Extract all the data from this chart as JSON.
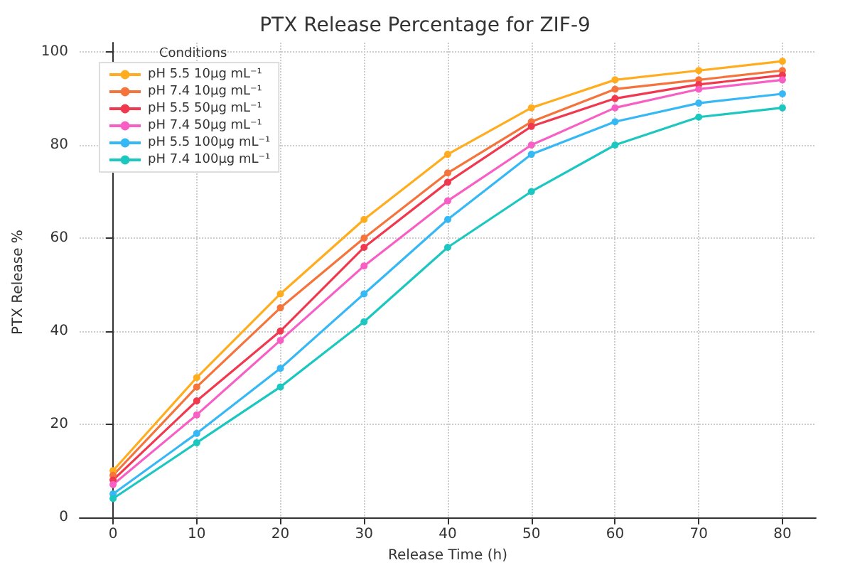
{
  "chart_data": {
    "type": "line",
    "title": "PTX Release Percentage for ZIF-9",
    "xlabel": "Release Time (h)",
    "ylabel": "PTX Release %",
    "legend_title": "Conditions",
    "x": [
      0,
      10,
      20,
      30,
      40,
      50,
      60,
      70,
      80
    ],
    "series": [
      {
        "name": "pH 5.5 10μg mL⁻¹",
        "color": "#ffad1f",
        "values": [
          10,
          30,
          48,
          64,
          78,
          88,
          94,
          96,
          98
        ]
      },
      {
        "name": "pH 7.4 10μg mL⁻¹",
        "color": "#f4743b",
        "values": [
          9,
          28,
          45,
          60,
          74,
          85,
          92,
          94,
          96
        ]
      },
      {
        "name": "pH 5.5 50μg mL⁻¹",
        "color": "#f0384f",
        "values": [
          8,
          25,
          40,
          58,
          72,
          84,
          90,
          93,
          95
        ]
      },
      {
        "name": "pH 7.4 50μg mL⁻¹",
        "color": "#f75fc4",
        "values": [
          7,
          22,
          38,
          54,
          68,
          80,
          88,
          92,
          94
        ]
      },
      {
        "name": "pH 5.5 100μg mL⁻¹",
        "color": "#36b8f5",
        "values": [
          5,
          18,
          32,
          48,
          64,
          78,
          85,
          89,
          91
        ]
      },
      {
        "name": "pH 7.4 100μg mL⁻¹",
        "color": "#1cc7c0",
        "values": [
          4,
          16,
          28,
          42,
          58,
          70,
          80,
          86,
          88
        ]
      }
    ],
    "xlim": [
      -4,
      84
    ],
    "xticks": [
      0,
      10,
      20,
      30,
      40,
      50,
      60,
      70,
      80
    ],
    "ylim": [
      -1,
      102
    ],
    "yticks": [
      0,
      20,
      40,
      60,
      80,
      100
    ],
    "grid": true,
    "legend": "top left",
    "marker": "circle",
    "line_style": "solid"
  }
}
